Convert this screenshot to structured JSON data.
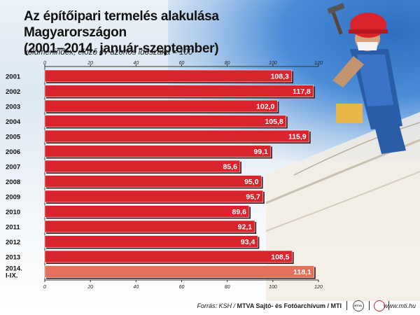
{
  "title_line1": "Az építőipari termelés alakulása Magyarországon",
  "title_line2": "(2001–2014. január-szeptember)",
  "subtitle": "volumenindex, előző év azonos időszaka = 100",
  "footer": {
    "source_prefix": "Forrás: KSH / ",
    "source_bold": "MTVA Sajtó- és Fotóarchívum / MTI",
    "logo1_text": "MTVA",
    "url": "www.mti.hu"
  },
  "colors": {
    "bar": "#d9232d",
    "bar_highlight": "#e3705a",
    "bar_border": "#3a1a1a"
  },
  "chart_data": {
    "type": "bar",
    "orientation": "horizontal",
    "categories": [
      "2001",
      "2002",
      "2003",
      "2004",
      "2005",
      "2006",
      "2007",
      "2008",
      "2009",
      "2010",
      "2011",
      "2012",
      "2013",
      "2014. I-IX."
    ],
    "values": [
      108.3,
      117.8,
      102.0,
      105.8,
      115.9,
      99.1,
      85.6,
      95.0,
      95.7,
      89.6,
      92.1,
      93.4,
      108.5,
      118.1
    ],
    "value_labels": [
      "108,3",
      "117,8",
      "102,0",
      "105,8",
      "115,9",
      "99,1",
      "85,6",
      "95,0",
      "95,7",
      "89,6",
      "92,1",
      "93,4",
      "108,5",
      "118,1"
    ],
    "xlim": [
      0,
      120
    ],
    "ticks": [
      0,
      20,
      40,
      60,
      80,
      100,
      120
    ],
    "title": "Az építőipari termelés alakulása Magyarországon (2001–2014. január-szeptember)",
    "xlabel": "volumenindex, előző év azonos időszaka = 100",
    "grid": false,
    "highlight_last": true
  }
}
